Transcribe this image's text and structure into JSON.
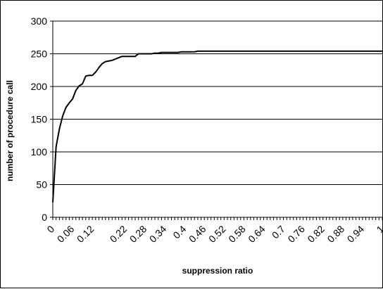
{
  "chart_data": {
    "type": "line",
    "title": "",
    "xlabel": "suppression ratio",
    "ylabel": "number of procedure call",
    "xlim": [
      0,
      1
    ],
    "ylim": [
      0,
      300
    ],
    "y_ticks": [
      0,
      50,
      100,
      150,
      200,
      250,
      300
    ],
    "x_tick_labels": [
      "0",
      "0.06",
      "0.12",
      "0.22",
      "0.28",
      "0.34",
      "0.4",
      "0.46",
      "0.52",
      "0.58",
      "0.64",
      "0.7",
      "0.76",
      "0.82",
      "0.88",
      "0.94",
      "1"
    ],
    "grid": "horizontal",
    "legend": "none",
    "series": [
      {
        "color": "#000000",
        "x": [
          0,
          0.01,
          0.02,
          0.03,
          0.04,
          0.05,
          0.06,
          0.07,
          0.08,
          0.09,
          0.1,
          0.11,
          0.12,
          0.13,
          0.14,
          0.15,
          0.16,
          0.17,
          0.18,
          0.19,
          0.2,
          0.21,
          0.22,
          0.23,
          0.24,
          0.25,
          0.26,
          0.27,
          0.28,
          0.29,
          0.3,
          0.31,
          0.32,
          0.33,
          0.34,
          0.35,
          0.36,
          0.37,
          0.38,
          0.39,
          0.4,
          0.41,
          0.42,
          0.43,
          0.44,
          0.45,
          0.46,
          0.5,
          0.6,
          0.7,
          0.8,
          0.9,
          1.0
        ],
        "y": [
          23,
          108,
          135,
          155,
          168,
          175,
          181,
          194,
          201,
          204,
          216,
          217,
          217,
          222,
          229,
          235,
          238,
          239,
          240,
          242,
          244,
          246,
          246,
          246,
          246,
          246,
          250,
          250,
          250,
          250,
          250,
          251,
          251,
          252,
          252,
          252,
          252,
          252,
          252,
          253,
          253,
          253,
          253,
          253,
          254,
          254,
          254,
          254,
          254,
          254,
          254,
          254,
          254
        ]
      }
    ]
  }
}
